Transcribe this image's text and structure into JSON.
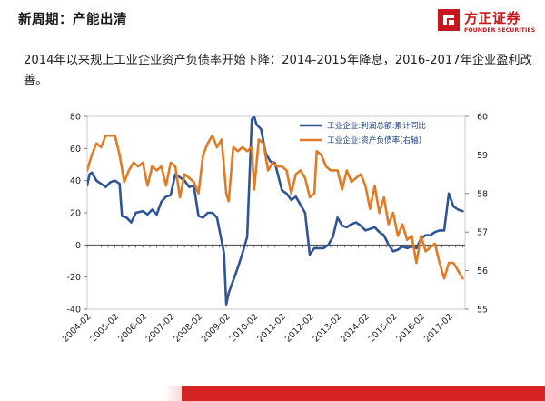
{
  "header": {
    "title": "新周期：产能出清",
    "brand_name": "方正证券",
    "brand_name_en": "FOUNDER SECURITIES"
  },
  "subtitle": "2014年以来规上工业企业资产负债率开始下降：2014-2015年降息，2016-2017年企业盈利改善。",
  "colors": {
    "brand_red": "#c8161d",
    "footer_red": "#d42320",
    "profit_series": "#2f5597",
    "debt_series": "#e07b24"
  },
  "chart_data": {
    "type": "line",
    "title": "",
    "x_tick_labels": [
      "2004-02",
      "2005-02",
      "2006-02",
      "2007-02",
      "2008-02",
      "2009-02",
      "2010-02",
      "2011-02",
      "2012-02",
      "2013-02",
      "2014-02",
      "2015-02",
      "2016-02",
      "2017-02"
    ],
    "left_axis": {
      "ylim": [
        -40,
        80
      ],
      "ticks": [
        -40,
        -20,
        0,
        20,
        40,
        60,
        80
      ]
    },
    "right_axis": {
      "ylim": [
        55,
        60
      ],
      "ticks": [
        55,
        56,
        57,
        58,
        59,
        60
      ]
    },
    "grid": false,
    "legend_position": "top-right",
    "series": [
      {
        "name": "工业企业:利润总额:累计同比",
        "axis": "left",
        "color": "#2f5597",
        "points": [
          [
            "2004-02",
            37
          ],
          [
            "2004-03",
            44
          ],
          [
            "2004-04",
            45
          ],
          [
            "2004-06",
            40
          ],
          [
            "2004-08",
            38
          ],
          [
            "2004-10",
            36
          ],
          [
            "2004-12",
            39
          ],
          [
            "2005-02",
            40
          ],
          [
            "2005-04",
            38
          ],
          [
            "2005-05",
            18
          ],
          [
            "2005-07",
            17
          ],
          [
            "2005-09",
            14
          ],
          [
            "2005-11",
            20
          ],
          [
            "2006-02",
            21
          ],
          [
            "2006-04",
            19
          ],
          [
            "2006-06",
            22
          ],
          [
            "2006-08",
            19
          ],
          [
            "2006-10",
            27
          ],
          [
            "2006-12",
            30
          ],
          [
            "2007-02",
            31
          ],
          [
            "2007-04",
            44
          ],
          [
            "2007-06",
            42
          ],
          [
            "2007-08",
            40
          ],
          [
            "2007-10",
            36
          ],
          [
            "2007-12",
            37
          ],
          [
            "2008-02",
            18
          ],
          [
            "2008-04",
            17
          ],
          [
            "2008-06",
            20
          ],
          [
            "2008-08",
            20
          ],
          [
            "2008-10",
            17
          ],
          [
            "2009-01",
            -5
          ],
          [
            "2009-02",
            -37
          ],
          [
            "2009-03",
            -30
          ],
          [
            "2009-05",
            -22
          ],
          [
            "2009-07",
            -14
          ],
          [
            "2009-09",
            -5
          ],
          [
            "2009-11",
            5
          ],
          [
            "2010-01",
            78
          ],
          [
            "2010-02",
            80
          ],
          [
            "2010-03",
            75
          ],
          [
            "2010-05",
            72
          ],
          [
            "2010-07",
            57
          ],
          [
            "2010-09",
            52
          ],
          [
            "2010-11",
            51
          ],
          [
            "2011-02",
            34
          ],
          [
            "2011-04",
            32
          ],
          [
            "2011-06",
            28
          ],
          [
            "2011-08",
            30
          ],
          [
            "2011-10",
            25
          ],
          [
            "2011-12",
            20
          ],
          [
            "2012-02",
            -6
          ],
          [
            "2012-04",
            -2
          ],
          [
            "2012-06",
            -2
          ],
          [
            "2012-08",
            -2
          ],
          [
            "2012-10",
            0
          ],
          [
            "2012-12",
            5
          ],
          [
            "2013-02",
            17
          ],
          [
            "2013-04",
            12
          ],
          [
            "2013-06",
            11
          ],
          [
            "2013-08",
            13
          ],
          [
            "2013-10",
            14
          ],
          [
            "2013-12",
            12
          ],
          [
            "2014-02",
            9
          ],
          [
            "2014-04",
            10
          ],
          [
            "2014-06",
            11
          ],
          [
            "2014-08",
            8
          ],
          [
            "2014-10",
            6
          ],
          [
            "2014-12",
            0
          ],
          [
            "2015-02",
            -4
          ],
          [
            "2015-04",
            -3
          ],
          [
            "2015-06",
            -1
          ],
          [
            "2015-08",
            -2
          ],
          [
            "2015-10",
            -1
          ],
          [
            "2015-12",
            -2
          ],
          [
            "2016-02",
            4
          ],
          [
            "2016-04",
            6
          ],
          [
            "2016-06",
            6
          ],
          [
            "2016-08",
            8
          ],
          [
            "2016-10",
            9
          ],
          [
            "2016-12",
            9
          ],
          [
            "2017-02",
            32
          ],
          [
            "2017-04",
            24
          ],
          [
            "2017-06",
            22
          ],
          [
            "2017-08",
            21
          ]
        ]
      },
      {
        "name": "工业企业:资产负债率(右轴)",
        "axis": "right",
        "color": "#e07b24",
        "points": [
          [
            "2004-02",
            58.6
          ],
          [
            "2004-04",
            59.0
          ],
          [
            "2004-06",
            59.3
          ],
          [
            "2004-08",
            59.2
          ],
          [
            "2004-10",
            59.5
          ],
          [
            "2004-12",
            59.5
          ],
          [
            "2005-02",
            59.5
          ],
          [
            "2005-04",
            59.0
          ],
          [
            "2005-06",
            58.3
          ],
          [
            "2005-08",
            58.6
          ],
          [
            "2005-10",
            58.8
          ],
          [
            "2005-12",
            58.7
          ],
          [
            "2006-02",
            58.8
          ],
          [
            "2006-04",
            58.2
          ],
          [
            "2006-06",
            58.7
          ],
          [
            "2006-08",
            58.6
          ],
          [
            "2006-10",
            58.7
          ],
          [
            "2006-12",
            58.2
          ],
          [
            "2007-02",
            58.8
          ],
          [
            "2007-04",
            58.7
          ],
          [
            "2007-06",
            57.9
          ],
          [
            "2007-08",
            58.5
          ],
          [
            "2007-10",
            58.4
          ],
          [
            "2007-12",
            58.3
          ],
          [
            "2008-02",
            58.0
          ],
          [
            "2008-04",
            59.0
          ],
          [
            "2008-06",
            59.3
          ],
          [
            "2008-08",
            59.5
          ],
          [
            "2008-10",
            59.2
          ],
          [
            "2008-12",
            59.4
          ],
          [
            "2009-02",
            58.0
          ],
          [
            "2009-03",
            57.8
          ],
          [
            "2009-05",
            59.2
          ],
          [
            "2009-07",
            59.1
          ],
          [
            "2009-09",
            59.2
          ],
          [
            "2009-11",
            59.1
          ],
          [
            "2010-01",
            59.2
          ],
          [
            "2010-02",
            58.1
          ],
          [
            "2010-04",
            59.4
          ],
          [
            "2010-06",
            59.3
          ],
          [
            "2010-08",
            58.6
          ],
          [
            "2010-10",
            58.8
          ],
          [
            "2010-12",
            58.7
          ],
          [
            "2011-02",
            58.7
          ],
          [
            "2011-04",
            58.6
          ],
          [
            "2011-06",
            58.0
          ],
          [
            "2011-08",
            58.5
          ],
          [
            "2011-10",
            58.6
          ],
          [
            "2011-12",
            58.4
          ],
          [
            "2012-02",
            57.9
          ],
          [
            "2012-04",
            58.0
          ],
          [
            "2012-05",
            59.1
          ],
          [
            "2012-07",
            59.0
          ],
          [
            "2012-09",
            58.7
          ],
          [
            "2012-11",
            58.6
          ],
          [
            "2013-02",
            58.6
          ],
          [
            "2013-04",
            58.1
          ],
          [
            "2013-06",
            58.6
          ],
          [
            "2013-08",
            58.3
          ],
          [
            "2013-10",
            58.4
          ],
          [
            "2013-12",
            58.5
          ],
          [
            "2014-02",
            58.2
          ],
          [
            "2014-04",
            57.6
          ],
          [
            "2014-06",
            58.2
          ],
          [
            "2014-08",
            57.5
          ],
          [
            "2014-10",
            57.9
          ],
          [
            "2014-12",
            57.2
          ],
          [
            "2015-02",
            57.5
          ],
          [
            "2015-04",
            56.9
          ],
          [
            "2015-06",
            57.2
          ],
          [
            "2015-08",
            56.8
          ],
          [
            "2015-10",
            56.9
          ],
          [
            "2015-12",
            56.2
          ],
          [
            "2016-02",
            56.9
          ],
          [
            "2016-04",
            56.5
          ],
          [
            "2016-06",
            56.6
          ],
          [
            "2016-08",
            56.7
          ],
          [
            "2016-10",
            56.2
          ],
          [
            "2016-12",
            55.8
          ],
          [
            "2017-02",
            56.2
          ],
          [
            "2017-04",
            56.2
          ],
          [
            "2017-06",
            56.0
          ],
          [
            "2017-08",
            55.8
          ]
        ]
      }
    ]
  }
}
